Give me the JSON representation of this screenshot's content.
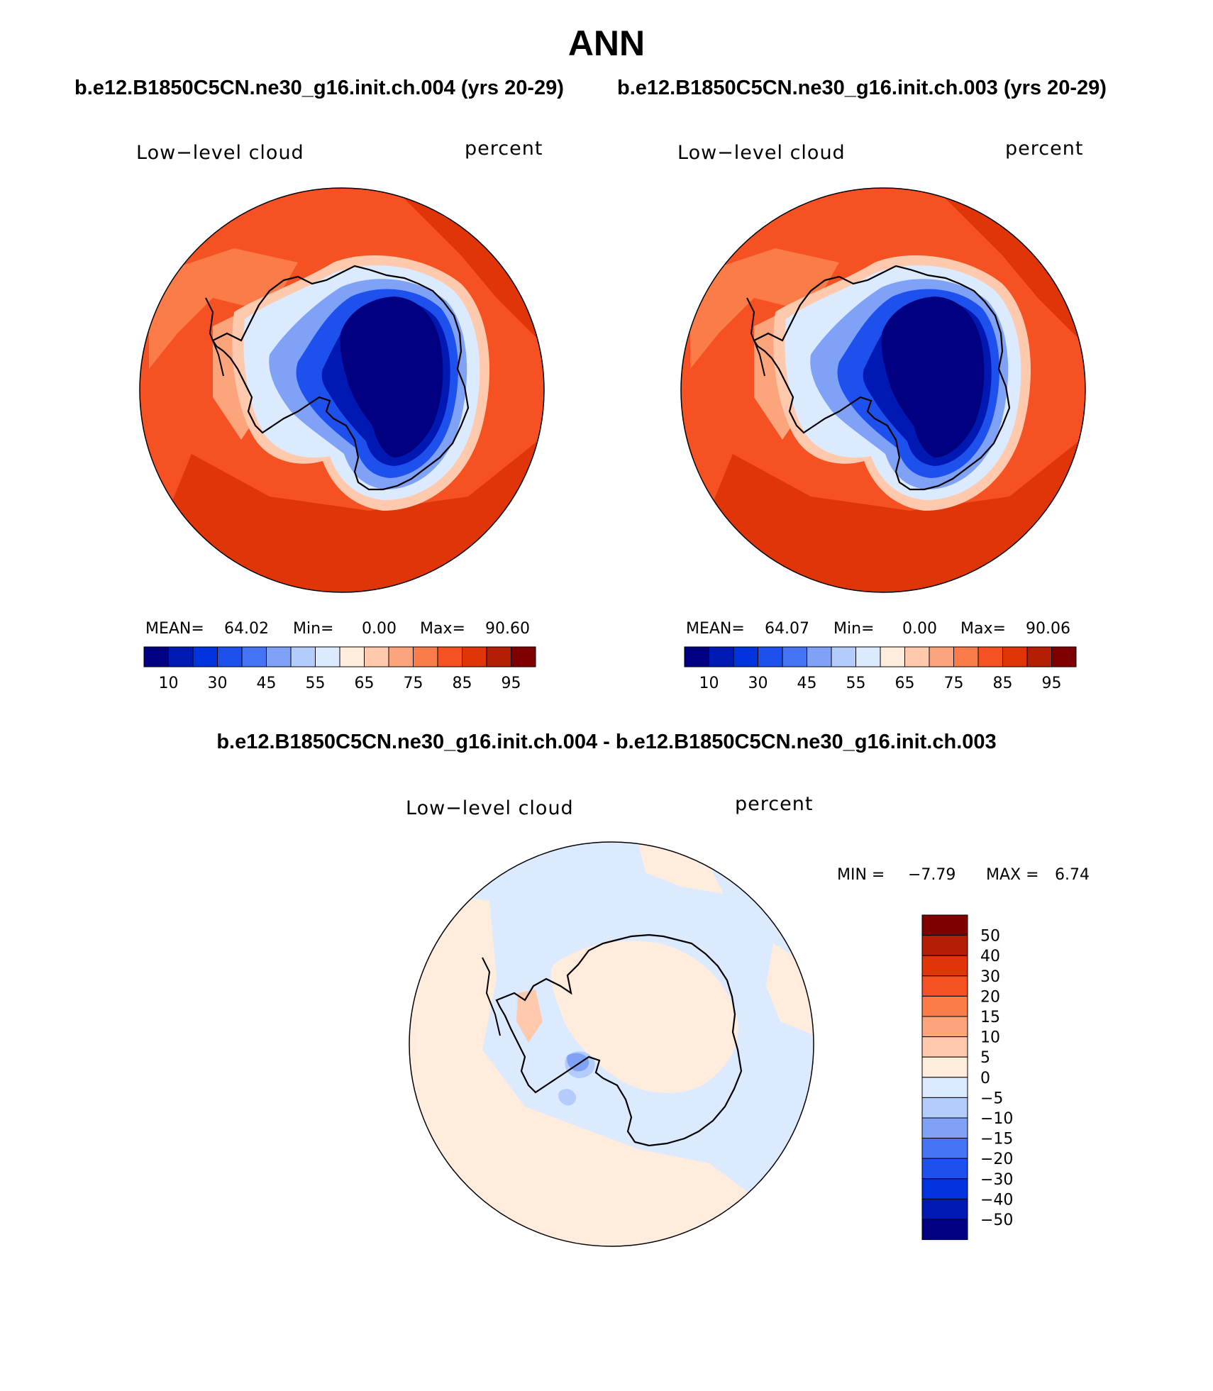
{
  "page": {
    "title": "ANN",
    "subtitle_left": "b.e12.B1850C5CN.ne30_g16.init.ch.004 (yrs 20-29)",
    "subtitle_right": "b.e12.B1850C5CN.ne30_g16.init.ch.003 (yrs 20-29)",
    "diff_title": "b.e12.B1850C5CN.ne30_g16.init.ch.004 - b.e12.B1850C5CN.ne30_g16.init.ch.003"
  },
  "panels": [
    {
      "variable": "Low−level cloud",
      "units": "percent",
      "stats": {
        "mean_label": "MEAN=",
        "mean": "64.02",
        "min_label": "Min=",
        "min": "0.00",
        "max_label": "Max=",
        "max": "90.60"
      }
    },
    {
      "variable": "Low−level cloud",
      "units": "percent",
      "stats": {
        "mean_label": "MEAN=",
        "mean": "64.07",
        "min_label": "Min=",
        "min": "0.00",
        "max_label": "Max=",
        "max": "90.06"
      }
    },
    {
      "variable": "Low−level cloud",
      "units": "percent",
      "stats": {
        "min_label": "MIN =",
        "min": "−7.79",
        "max_label": "MAX =",
        "max": "6.74"
      }
    }
  ],
  "colorbar_abs": {
    "colors": [
      "#000080",
      "#0019b3",
      "#0033dd",
      "#1e50ee",
      "#4575f5",
      "#7fa2f7",
      "#b3ccfb",
      "#dceaff",
      "#ffecdc",
      "#ffc9ad",
      "#fca57d",
      "#fb7b49",
      "#f65123",
      "#e03509",
      "#b31e05",
      "#7f0000"
    ],
    "labels": [
      "10",
      "30",
      "45",
      "55",
      "65",
      "75",
      "85",
      "95"
    ]
  },
  "colorbar_diff": {
    "colors": [
      "#7f0000",
      "#b31e05",
      "#e03509",
      "#f65123",
      "#fb7b49",
      "#fca57d",
      "#ffc9ad",
      "#ffecdc",
      "#dceaff",
      "#b3ccfb",
      "#7fa2f7",
      "#4575f5",
      "#1e50ee",
      "#0033dd",
      "#0019b3",
      "#000080"
    ],
    "labels": [
      "50",
      "40",
      "30",
      "20",
      "15",
      "10",
      "5",
      "0",
      "−5",
      "−10",
      "−15",
      "−20",
      "−30",
      "−40",
      "−50"
    ]
  },
  "map_colors": {
    "abs_ocean": "#f65123",
    "abs_dark": "#e03509",
    "abs_mid": "#fb7b49",
    "abs_light": "#fca57d",
    "abs_pale": "#ffc9ad",
    "abs_ice_edge": "#dceaff",
    "abs_ice_1": "#7fa2f7",
    "abs_ice_2": "#1e50ee",
    "abs_ice_3": "#0019b3",
    "abs_ice_core": "#000080",
    "diff_pos": "#ffecdc",
    "diff_neg": "#dceaff",
    "diff_pos2": "#ffc9ad",
    "diff_neg2": "#b3ccfb",
    "diff_neg3": "#7fa2f7",
    "coast": "#000000"
  }
}
